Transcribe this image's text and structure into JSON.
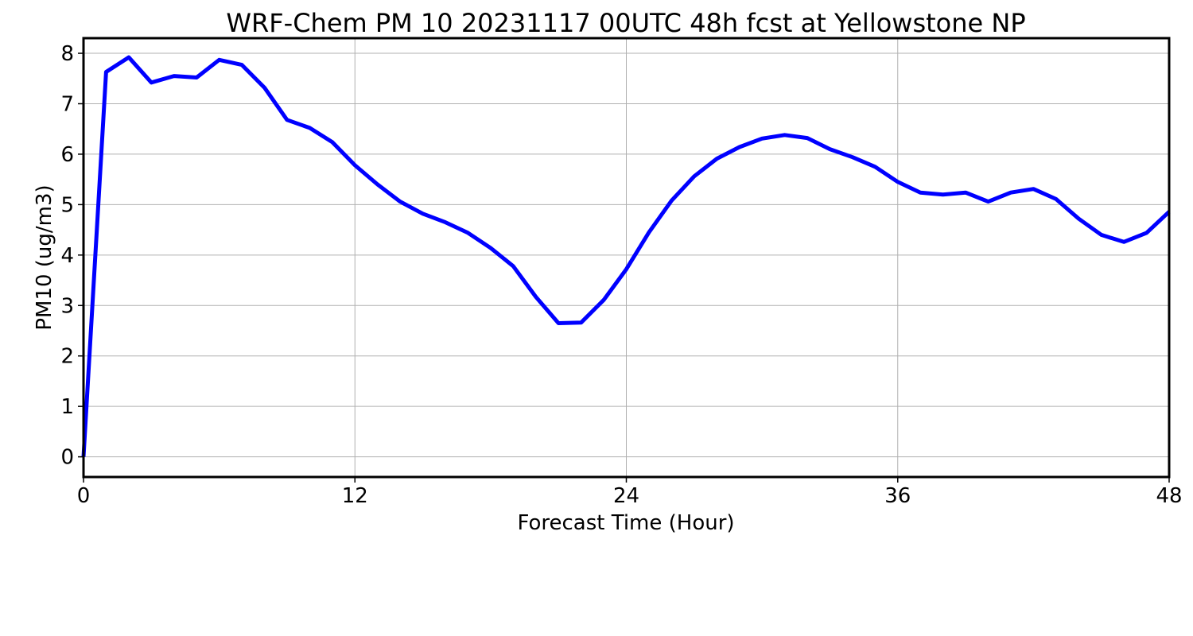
{
  "chart_data": {
    "type": "line",
    "title": "WRF-Chem PM 10  20231117 00UTC 48h fcst at Yellowstone NP",
    "xlabel": "Forecast Time (Hour)",
    "ylabel": "PM10  (ug/m3)",
    "xlim": [
      0,
      48
    ],
    "ylim": [
      -0.4,
      8.3
    ],
    "xticks": [
      0,
      12,
      24,
      36,
      48
    ],
    "yticks": [
      0,
      1,
      2,
      3,
      4,
      5,
      6,
      7,
      8
    ],
    "grid": true,
    "line_color": "#0000ff",
    "series": [
      {
        "x": [
          0,
          1,
          2,
          3,
          4,
          5,
          6,
          7,
          8,
          9,
          10,
          11,
          12,
          13,
          14,
          15,
          16,
          17,
          18,
          19,
          20,
          21,
          22,
          23,
          24,
          25,
          26,
          27,
          28,
          29,
          30,
          31,
          32,
          33,
          34,
          35,
          36,
          37,
          38,
          39,
          40,
          41,
          42,
          43,
          44,
          45,
          46,
          47,
          48
        ],
        "values": [
          0,
          7.63,
          7.92,
          7.42,
          7.55,
          7.52,
          7.87,
          7.77,
          7.32,
          6.68,
          6.52,
          6.24,
          5.78,
          5.4,
          5.06,
          4.82,
          4.65,
          4.44,
          4.14,
          3.78,
          3.17,
          2.65,
          2.66,
          3.11,
          3.72,
          4.45,
          5.08,
          5.56,
          5.91,
          6.14,
          6.31,
          6.38,
          6.32,
          6.1,
          5.94,
          5.75,
          5.45,
          5.24,
          5.2,
          5.24,
          5.06,
          5.24,
          5.31,
          5.11,
          4.72,
          4.4,
          4.26,
          4.44,
          4.86
        ]
      }
    ]
  }
}
